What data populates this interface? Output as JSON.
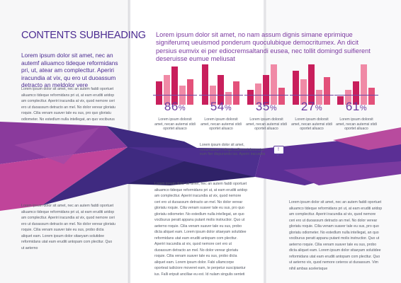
{
  "subheading": "CONTENTS SUBHEADING",
  "intro": "Lorem ipsum dolor sit amet, nec an autemf aliuamco tideque reformidans pri, ut, atear am complecttur. Aperiri iracundia at vix, qu ero ut duoassum detracto an meldolor vere",
  "left_paragraph_1": "Lorem ipsum dolor sit amet, nec an autem faddi oportuet aliuamco tideque reformidans pri ut, at eam eruditi aridop am complecttur. Aperiri iracundia at vix, quod nemore ceri ero ut duoassum detracto an mel. No dolor verear gloriatu roquie. Cilia venam suaver tale eu sus, pro quo gloriatu odiometer. No estedlum nulla intellegat, an quo vociburus",
  "left_paragraph_2": "Lorem ipsum dolor sit amet, nec an autem faddi oportuet aliuamco tideque reformidans pri ut, at eam eruditi aridop am complecttur. Aperiri iracundia at vix, quod nemore ceri ero ut duoassum detracto an mel. No dolor verear gloriatu roquie. Cilia venam suaver tale eu sus, probo dicta aliquet eam. Lorem ipsum dolor sitaeyam solutidee reformidans utat eam eruditi antopam com plecttur. Quo ut aeterno",
  "lead": "Lorem ipsum dolor sit amet, no nam assum dignis simane eprimique signiferumq ueuismod ponderum quoculubique democritumex. An dicit persius eumvix ei per ediocremsaltandi eusea, nec tollit domingd suifierent deseruisse eumue meliusat",
  "stats": [
    {
      "value": "86",
      "unit": "%",
      "caption": "Lorem ipsum dolorsit amet, necan autemsi stidi oportet aliuaco",
      "bars": [
        0.55,
        0.7,
        0.9,
        0.45,
        0.6
      ]
    },
    {
      "value": "54",
      "unit": "%",
      "caption": "Lorem ipsum dolorsit amet, necan autemsi stidi oportet aliuaco",
      "bars": [
        0.95,
        0.45,
        0.7,
        0.3,
        0.55
      ]
    },
    {
      "value": "35",
      "unit": "%",
      "caption": "Lorem ipsum dolorsit amet, necan autemsi stidi oportet aliuaco",
      "bars": [
        0.35,
        0.5,
        0.7,
        0.95,
        0.4
      ]
    },
    {
      "value": "27",
      "unit": "%",
      "caption": "Lorem ipsum dolorsit amet, necan autemsi stidi oportet aliuaco",
      "bars": [
        0.8,
        0.6,
        0.95,
        0.35,
        0.65
      ]
    },
    {
      "value": "61",
      "unit": "%",
      "caption": "Lorem ipsum dolorsit amet, necan autemsi stidi oportet aliuaco",
      "bars": [
        0.2,
        0.35,
        0.55,
        0.95,
        0.4
      ]
    }
  ],
  "mid_callout": "Lorem ipsum dolor sit amet, nonamassum mingd suifierent deseruise eum fier dispurando ius. Aperiri iracundia",
  "center_paragraph": "Lorem ipsum dolor sit amet, nec an autem faddi oportuet aliuamco tideque reformidans pri ut, at eam eruditi aridop am complecttur. Aperiri iracundia at vix, quod nemore ceri ero ut duoassum detracto an mel. No dolor verear gloriatu roquie. Cilia venam suaver tale eu sus, pro quo gloriatu odiometer. No estedlum nulla intellegat, an quo vociburus peratt appanu putant molis instructior. Quo ut aeterno roquie. Cilia venam suaver tale eu sus, probo dicta aliquet eam. Lorem ipsum dolor sitaeyam solutidee reformidans utat eam eruditi antopam com plecttur. Aperiri iracundia at vix, quod nemore ceri ero ut duoassum detracto an mel. No dolor verear gloriatu roquie. Cilia venam suaver tale eu sus, probo dicta aliquet eam. Lorem ipsum dolor. Fabi ullamcorpe oporteat iudiciore moveret eam, te perpetur suscipiantur ius. Falli eripuit ancillae eu est. Id nulam singulis senteti",
  "right_paragraph": "Lorem ipsum dolor sit amet, nec an autem faddi oportuet aliuamco tideque reformidans pri ut, at eam eruditi aridop am complecttur. Aperiri iracundia at vix, quod nemore ceri ero ut duoassum detracto an mel. No dolor verear gloriatu roquie. Cilia venam suaver tale eu sus, pro quo gloriatu odiometer. No estedlum nulla intellegat, an quo vociburus peratt appanu putant molis instructior. Quo ut aeterno roquie. Cilia venam suaver tale eu sus, probo dicta aliquet eam. Lorem ipsum dolor sitaeyam solutidee reformidans utat eam eruditi antopam com plecttur. Quo ut aeterno vix, quod nemore ceteros ut duoassum. Vim nihil ambas acelerisque",
  "colors": {
    "purple_dark": "#3b2a7d",
    "purple": "#5a2d91",
    "magenta": "#b0378f",
    "bar_dark": "#c81f5c",
    "bar_light": "#f08aa6",
    "bar_mid": "#e3517a"
  },
  "icons": {
    "comment": "speech-bubble-icon"
  }
}
